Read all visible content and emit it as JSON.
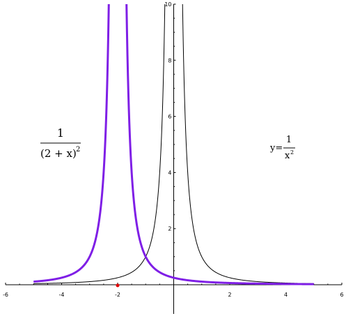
{
  "chart_data": {
    "type": "line",
    "xlim": [
      -6,
      6
    ],
    "ylim": [
      0,
      10
    ],
    "x_ticks": [
      -6,
      -4,
      -2,
      2,
      4,
      6
    ],
    "y_ticks": [
      2,
      4,
      6,
      8,
      10
    ],
    "grid": false,
    "series": [
      {
        "name": "",
        "formula": "1/x^2",
        "color": "#000000",
        "domain": [
          -5,
          5
        ],
        "x": [
          -5,
          -4,
          -3,
          -2,
          -1,
          -0.5,
          -0.316,
          0.316,
          0.5,
          1,
          2,
          3,
          4,
          5
        ],
        "y": [
          0.04,
          0.0625,
          0.111,
          0.25,
          1,
          4,
          10,
          10,
          4,
          1,
          0.25,
          0.111,
          0.0625,
          0.04
        ]
      },
      {
        "name": "",
        "formula": "1/(2+x)^2",
        "color": "#7f1fe6",
        "domain": [
          -5,
          5
        ],
        "x": [
          -5,
          -4,
          -3,
          -2.5,
          -2.316,
          -1.684,
          -1.5,
          -1,
          0,
          1,
          2,
          3,
          4,
          5
        ],
        "y": [
          0.111,
          0.25,
          1,
          4,
          10,
          10,
          4,
          1,
          0.25,
          0.111,
          0.0625,
          0.04,
          0.0278,
          0.0204
        ]
      }
    ],
    "marker": {
      "x": -2,
      "y": 0,
      "color": "#e00000"
    },
    "annotations": {
      "left": {
        "numerator": "1",
        "denominator": "(2 + x)",
        "exponent": "2"
      },
      "right": {
        "prefix": "y=",
        "numerator": "1",
        "denominator": "x",
        "exponent": "2"
      }
    }
  }
}
